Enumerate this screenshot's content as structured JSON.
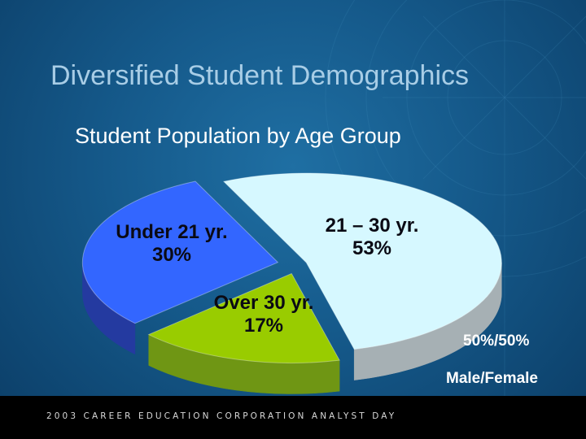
{
  "slide": {
    "title": "Diversified Student Demographics",
    "footer": "2003 CAREER EDUCATION CORPORATION ANALYST DAY"
  },
  "chart_data": {
    "type": "pie",
    "title": "Student Population by Age Group",
    "slices": [
      {
        "name": "21 – 30 yr.",
        "value": 53,
        "value_label": "53%",
        "color": "#d6f8ff",
        "side": "#a6b0b4"
      },
      {
        "name": "Over 30 yr.",
        "value": 17,
        "value_label": "17%",
        "color": "#99cc00",
        "side": "#6f9614"
      },
      {
        "name": "Under 21 yr.",
        "value": 30,
        "value_label": "30%",
        "color": "#3366ff",
        "side": "#243aa0"
      }
    ],
    "annotations": [
      "50%/50%",
      "Male/Female"
    ],
    "style": "3d exploded"
  }
}
